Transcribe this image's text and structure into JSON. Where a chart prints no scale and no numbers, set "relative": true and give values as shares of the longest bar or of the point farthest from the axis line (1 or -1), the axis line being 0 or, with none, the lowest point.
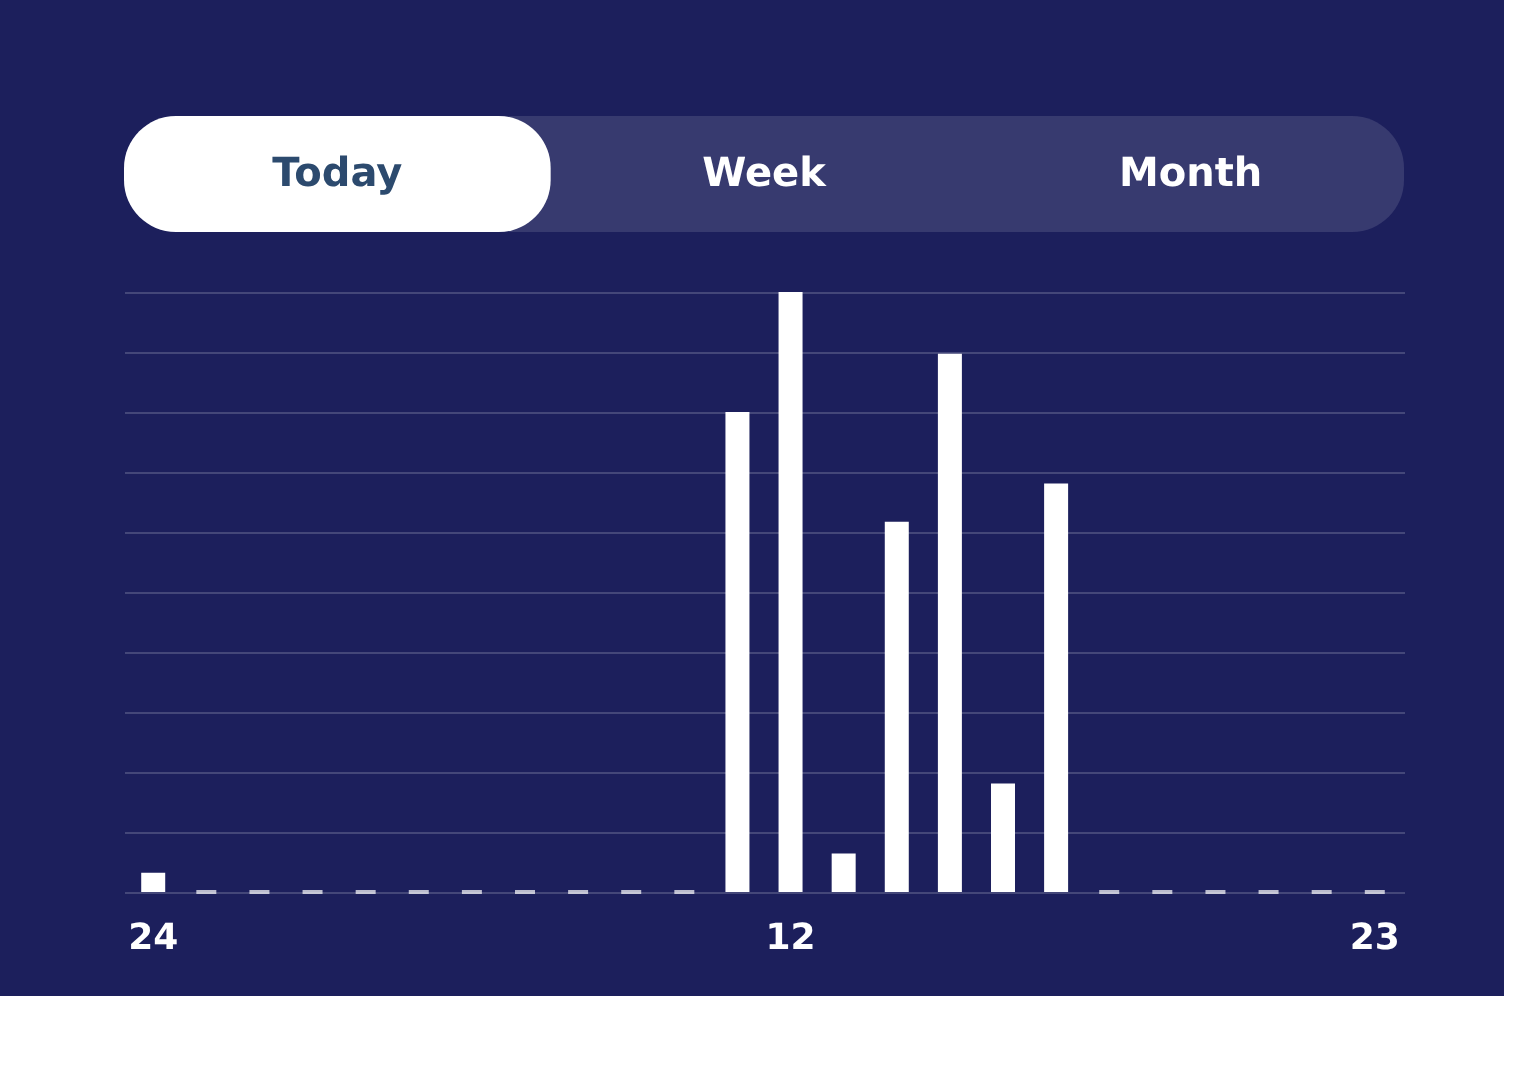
{
  "chart_data": {
    "type": "bar",
    "relative": true,
    "color": "#ffffff",
    "grid": "y",
    "annotations": [
      "Today",
      "Week",
      "Month"
    ],
    "categories": [
      "24",
      null,
      null,
      null,
      null,
      null,
      null,
      null,
      null,
      null,
      null,
      null,
      "12",
      null,
      null,
      null,
      null,
      null,
      null,
      null,
      null,
      null,
      null,
      "23"
    ],
    "values": [
      0.032,
      0,
      0,
      0,
      0,
      0,
      0,
      0,
      0,
      0,
      0,
      0.8,
      1,
      0.064,
      0.617,
      0.897,
      0.181,
      0.681,
      0,
      0,
      0,
      0,
      0,
      0
    ]
  }
}
